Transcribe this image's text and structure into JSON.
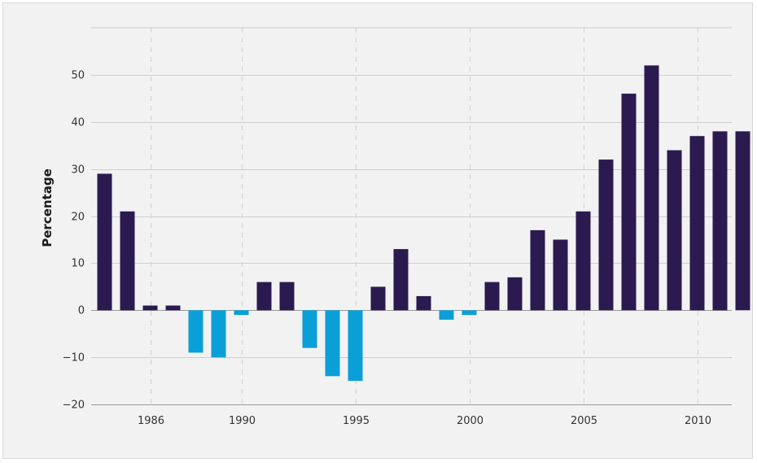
{
  "chart_data": {
    "type": "bar",
    "title": "",
    "xlabel": "",
    "ylabel": "Percentage",
    "ylim": [
      -20,
      60
    ],
    "yticks": [
      -20,
      -10,
      0,
      10,
      20,
      30,
      40,
      50
    ],
    "xticks": [
      1986,
      1990,
      1995,
      2000,
      2005,
      2010
    ],
    "grid": {
      "horizontal": true,
      "vertical_dashed_at_xticks": true
    },
    "colors": {
      "positive": "#2b1a4f",
      "negative": "#0b9fd8",
      "grid": "#cfcfcf",
      "background": "#f2f2f2"
    },
    "categories": [
      1984,
      1985,
      1986,
      1987,
      1988,
      1989,
      1990,
      1991,
      1992,
      1993,
      1994,
      1995,
      1996,
      1997,
      1998,
      1999,
      2000,
      2001,
      2002,
      2003,
      2004,
      2005,
      2006,
      2007,
      2008,
      2009,
      2010,
      2011,
      2012
    ],
    "values": [
      29,
      21,
      1,
      1,
      -9,
      -10,
      -1,
      6,
      6,
      -8,
      -14,
      -15,
      5,
      13,
      3,
      -2,
      -1,
      6,
      7,
      17,
      15,
      21,
      32,
      46,
      52,
      34,
      37,
      38,
      38
    ]
  }
}
